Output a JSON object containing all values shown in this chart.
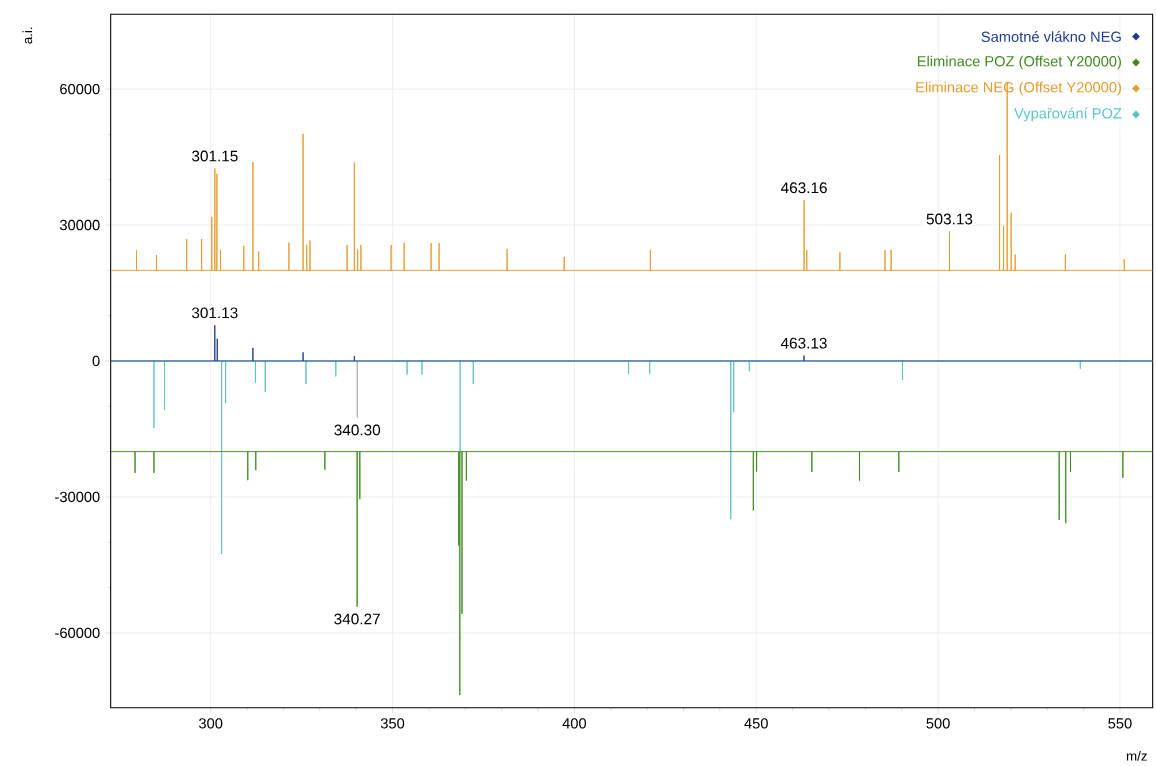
{
  "chart_data": {
    "type": "line",
    "xlabel": "m/z",
    "ylabel": "a.i.",
    "xlim": [
      272.5,
      559
    ],
    "ylim": [
      -76500,
      76500
    ],
    "xticks": [
      300,
      350,
      400,
      450,
      500,
      550
    ],
    "yticks": [
      -60000,
      -30000,
      0,
      30000,
      60000
    ],
    "grid": true,
    "legend": "top right",
    "series": [
      {
        "name": "Samotné vlákno NEG",
        "color": "#1f3d8c",
        "x": [
          272.5,
          301.13,
          301.13,
          301.13,
          301.8,
          301.8,
          301.8,
          311.6,
          311.6,
          311.6,
          325.4,
          325.4,
          325.4,
          339.5,
          339.5,
          339.5,
          463.13,
          463.13,
          463.13,
          559
        ],
        "values": [
          0,
          0,
          7900,
          0,
          0,
          4900,
          0,
          0,
          2900,
          0,
          0,
          1900,
          0,
          0,
          1100,
          0,
          0,
          1200,
          0,
          0
        ]
      },
      {
        "name": "Eliminace POZ (Offset Y20000)",
        "color": "#3e8a1e",
        "x": [
          272.5,
          279.2,
          279.2,
          279.2,
          284.4,
          284.4,
          284.4,
          310.2,
          310.2,
          310.2,
          312.4,
          312.4,
          312.4,
          331.4,
          331.4,
          331.4,
          340.27,
          340.27,
          340.27,
          341.0,
          341.0,
          341.0,
          368.2,
          368.2,
          368.2,
          368.5,
          368.5,
          368.5,
          369.1,
          369.1,
          369.1,
          370.3,
          370.3,
          370.3,
          449.2,
          449.2,
          449.2,
          450.1,
          450.1,
          450.1,
          465.3,
          465.3,
          465.3,
          478.4,
          478.4,
          478.4,
          489.2,
          489.2,
          489.2,
          533.3,
          533.3,
          533.3,
          535.1,
          535.1,
          535.1,
          536.4,
          536.4,
          536.4,
          550.8,
          550.8,
          550.8,
          559
        ],
        "values": [
          -20000,
          -20000,
          -24700,
          -20000,
          -20000,
          -24700,
          -20000,
          -20000,
          -26300,
          -20000,
          -20000,
          -24100,
          -20000,
          -20000,
          -24000,
          -20000,
          -20000,
          -54200,
          -20000,
          -20000,
          -30500,
          -20000,
          -20000,
          -40700,
          -20000,
          -20000,
          -73700,
          -20000,
          -20000,
          -55800,
          -20000,
          -20000,
          -26400,
          -20000,
          -20000,
          -33000,
          -20000,
          -20000,
          -24400,
          -20000,
          -20000,
          -24500,
          -20000,
          -20000,
          -26400,
          -20000,
          -20000,
          -24500,
          -20000,
          -20000,
          -35100,
          -20000,
          -20000,
          -35800,
          -20000,
          -20000,
          -24500,
          -20000,
          -20000,
          -25800,
          -20000,
          -20000
        ]
      },
      {
        "name": "Eliminace NEG (Offset Y20000)",
        "color": "#e59b2a",
        "x": [
          272.5,
          279.6,
          279.6,
          279.6,
          285.1,
          285.1,
          285.1,
          293.4,
          293.4,
          293.4,
          297.5,
          297.5,
          297.5,
          300.3,
          300.3,
          300.3,
          301.15,
          301.15,
          301.15,
          301.7,
          301.7,
          301.7,
          302.7,
          302.7,
          302.7,
          309.1,
          309.1,
          309.1,
          311.6,
          311.6,
          311.6,
          313.2,
          313.2,
          313.2,
          321.5,
          321.5,
          321.5,
          325.4,
          325.4,
          325.4,
          326.4,
          326.4,
          326.4,
          327.3,
          327.3,
          327.3,
          337.5,
          337.5,
          337.5,
          339.5,
          339.5,
          339.5,
          340.4,
          340.4,
          340.4,
          341.3,
          341.3,
          341.3,
          349.6,
          349.6,
          349.6,
          353.2,
          353.2,
          353.2,
          360.6,
          360.6,
          360.6,
          362.8,
          362.8,
          362.8,
          381.5,
          381.5,
          381.5,
          397.2,
          397.2,
          397.2,
          420.9,
          420.9,
          420.9,
          463.16,
          463.16,
          463.16,
          463.9,
          463.9,
          463.9,
          473.0,
          473.0,
          473.0,
          485.4,
          485.4,
          485.4,
          487.1,
          487.1,
          487.1,
          503.13,
          503.13,
          503.13,
          516.9,
          516.9,
          516.9,
          518.0,
          518.0,
          518.0,
          519.0,
          519.0,
          519.0,
          520.1,
          520.1,
          520.1,
          521.2,
          521.2,
          521.2,
          535.0,
          535.0,
          535.0,
          551.2,
          551.2,
          551.2,
          559
        ],
        "values": [
          20000,
          20000,
          24400,
          20000,
          20000,
          23400,
          20000,
          20000,
          26900,
          20000,
          20000,
          26900,
          20000,
          20000,
          31800,
          20000,
          20000,
          42500,
          20000,
          20000,
          41300,
          20000,
          20000,
          24500,
          20000,
          20000,
          25400,
          20000,
          20000,
          43900,
          20000,
          20000,
          24200,
          20000,
          20000,
          26100,
          20000,
          20000,
          50100,
          20000,
          20000,
          25600,
          20000,
          20000,
          26600,
          20000,
          20000,
          25600,
          20000,
          20000,
          43800,
          20000,
          20000,
          24600,
          20000,
          20000,
          25600,
          20000,
          20000,
          25600,
          20000,
          20000,
          26100,
          20000,
          20000,
          26000,
          20000,
          20000,
          26000,
          20000,
          20000,
          24700,
          20000,
          20000,
          23000,
          20000,
          20000,
          24500,
          20000,
          20000,
          35500,
          20000,
          20000,
          24500,
          20000,
          20000,
          24000,
          20000,
          20000,
          24500,
          20000,
          20000,
          24500,
          20000,
          20000,
          28600,
          20000,
          20000,
          45400,
          20000,
          20000,
          29800,
          20000,
          20000,
          61400,
          20000,
          20000,
          32700,
          20000,
          20000,
          23500,
          20000,
          20000,
          23500,
          20000,
          20000,
          22500,
          20000,
          20000
        ]
      },
      {
        "name": "Vypařování POZ",
        "color": "#5bc3c8",
        "x": [
          272.5,
          284.4,
          284.4,
          284.4,
          287.3,
          287.3,
          287.3,
          303.0,
          303.0,
          303.0,
          304.1,
          304.1,
          304.1,
          312.3,
          312.3,
          312.3,
          315.0,
          315.0,
          315.0,
          326.2,
          326.2,
          326.2,
          334.4,
          334.4,
          334.4,
          354.0,
          354.0,
          354.0,
          358.1,
          358.1,
          358.1,
          368.6,
          368.6,
          368.6,
          372.2,
          372.2,
          372.2,
          414.9,
          414.9,
          414.9,
          420.7,
          420.7,
          420.7,
          443.0,
          443.0,
          443.0,
          443.8,
          443.8,
          443.8,
          448.1,
          448.1,
          448.1,
          490.2,
          490.2,
          490.2,
          539.1,
          539.1,
          539.1,
          559
        ],
        "values": [
          0,
          0,
          -14800,
          0,
          0,
          -10800,
          0,
          0,
          -42600,
          0,
          0,
          -9300,
          0,
          0,
          -4800,
          0,
          0,
          -6800,
          0,
          0,
          -5100,
          0,
          0,
          -3400,
          0,
          0,
          -3000,
          0,
          0,
          -3000,
          0,
          0,
          -20000,
          0,
          0,
          -5100,
          0,
          0,
          -2900,
          0,
          0,
          -2900,
          0,
          0,
          -34900,
          0,
          0,
          -11300,
          0,
          0,
          -2300,
          0,
          0,
          -4200,
          0,
          0,
          -1700,
          0,
          0
        ]
      },
      {
        "color": "#8c8c96",
        "x": [
          340.3,
          340.3
        ],
        "values": [
          0,
          -12500
        ]
      }
    ],
    "annotations": [
      {
        "text": "301.15",
        "x": 301.15,
        "y": 42500
      },
      {
        "text": "463.16",
        "x": 463.16,
        "y": 35500
      },
      {
        "text": "503.13",
        "x": 503.13,
        "y": 28600
      },
      {
        "text": "301.13",
        "x": 301.13,
        "y": 7900
      },
      {
        "text": "463.13",
        "x": 463.13,
        "y": 1200
      },
      {
        "text": "340.30",
        "x": 340.3,
        "y": -12500
      },
      {
        "text": "340.27",
        "x": 340.27,
        "y": -54200
      }
    ]
  }
}
